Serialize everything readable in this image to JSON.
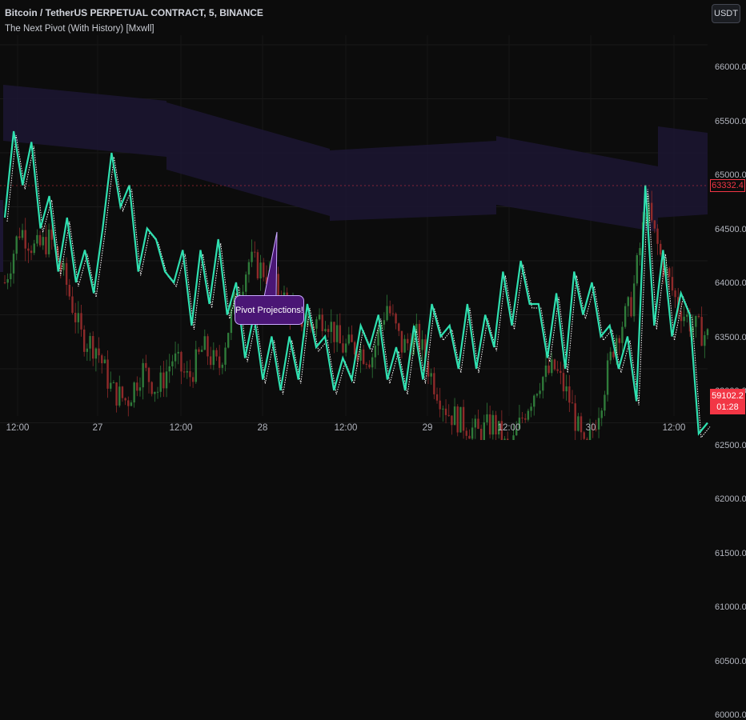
{
  "header": {
    "title": "Bitcoin / TetherUS PERPETUAL CONTRACT, 5, BINANCE",
    "indicator": "The Next Pivot (With History) [Mxwll]",
    "currency_button": "USDT"
  },
  "annotation": {
    "text": "Pivot Projections!"
  },
  "price_tag": {
    "last": "63332.4",
    "countdown_price": "59102.2",
    "countdown_time": "01:28"
  },
  "colors": {
    "background": "#0c0c0c",
    "projection_line": "#2fe0b0",
    "projection_band": "#1c1633",
    "candle_up": "#2f7b3a",
    "candle_down": "#8f2a2a",
    "alert_red": "#f23645",
    "callout_fill": "#4a1675",
    "callout_border": "#c9a8ff"
  },
  "chart_data": {
    "type": "line",
    "title": "Bitcoin / TetherUS PERPETUAL CONTRACT, 5, BINANCE",
    "ylim": [
      59600,
      66300
    ],
    "y_ticks": [
      "66000.0",
      "65500.0",
      "65000.0",
      "64500.0",
      "64000.0",
      "63500.0",
      "63000.0",
      "62500.0",
      "62000.0",
      "61500.0",
      "61000.0",
      "60500.0",
      "60000.0"
    ],
    "x_ticks": [
      "12:00",
      "27",
      "12:00",
      "28",
      "12:00",
      "29",
      "12:00",
      "30",
      "12:00"
    ],
    "grid": true,
    "series": [
      {
        "values": [
          64400,
          65200,
          64700,
          65100,
          64300,
          64600,
          63900,
          64400,
          63800,
          64100,
          63700,
          64300,
          65000,
          64500,
          64700,
          63900,
          64300,
          64200,
          63900,
          63800,
          64100,
          63400,
          64100,
          63600,
          64200,
          63500,
          63800,
          63100,
          63500,
          62900,
          63300,
          62800,
          63300,
          62900,
          63600,
          63200,
          63300,
          62800,
          63100,
          62900,
          63400,
          63200,
          63500,
          62900,
          63200,
          62800,
          63400,
          62900,
          63600,
          63300,
          63400,
          63000,
          63600,
          63000,
          63500,
          63200,
          63900,
          63400,
          64000,
          63600,
          63600,
          63100,
          63700,
          63000,
          63900,
          63500,
          63800,
          63300,
          63400,
          63000,
          63300,
          62700,
          64700,
          63400,
          64100,
          63300,
          63700,
          63500,
          62400,
          62500
        ]
      },
      {
        "values": [
          63800,
          64300,
          64100,
          64200,
          63800,
          63300,
          63200,
          62800,
          62700,
          63000,
          62800,
          63100,
          62900,
          63200,
          63000,
          63600,
          64000,
          63900,
          63700,
          63500,
          63400,
          63500,
          63200,
          63200,
          63100,
          63600,
          63200,
          63300,
          62900,
          62600,
          62500,
          62400,
          62500,
          62200,
          62600,
          62900,
          63000,
          62700,
          62200,
          62700,
          63300,
          63600,
          64500,
          64000,
          63600,
          63400,
          63300
        ]
      }
    ]
  }
}
